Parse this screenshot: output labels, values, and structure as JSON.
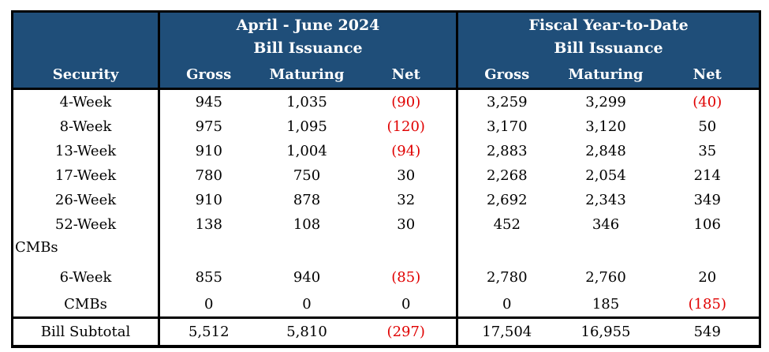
{
  "colors": {
    "header_bg": "#1F4E79",
    "header_text": "#FFFFFF",
    "negative": "#E00000",
    "body_text": "#000000",
    "border": "#000000"
  },
  "header": {
    "security_label": "Security",
    "sections": [
      {
        "line1": "April - June 2024",
        "line2": "Bill Issuance",
        "columns": [
          "Gross",
          "Maturing",
          "Net"
        ]
      },
      {
        "line1": "Fiscal Year-to-Date",
        "line2": "Bill Issuance",
        "columns": [
          "Gross",
          "Maturing",
          "Net"
        ]
      }
    ]
  },
  "rows": [
    {
      "label": "4-Week",
      "cells": [
        "945",
        "1,035",
        "(90)",
        "3,259",
        "3,299",
        "(40)"
      ]
    },
    {
      "label": "8-Week",
      "cells": [
        "975",
        "1,095",
        "(120)",
        "3,170",
        "3,120",
        "50"
      ]
    },
    {
      "label": "13-Week",
      "cells": [
        "910",
        "1,004",
        "(94)",
        "2,883",
        "2,848",
        "35"
      ]
    },
    {
      "label": "17-Week",
      "cells": [
        "780",
        "750",
        "30",
        "2,268",
        "2,054",
        "214"
      ]
    },
    {
      "label": "26-Week",
      "cells": [
        "910",
        "878",
        "32",
        "2,692",
        "2,343",
        "349"
      ]
    },
    {
      "label": "52-Week",
      "cells": [
        "138",
        "108",
        "30",
        "452",
        "346",
        "106"
      ]
    },
    {
      "label": "CMBs",
      "cells": [
        "",
        "",
        "",
        "",
        "",
        ""
      ]
    },
    {
      "label": "6-Week",
      "cells": [
        "855",
        "940",
        "(85)",
        "2,780",
        "2,760",
        "20"
      ]
    },
    {
      "label": "CMBs",
      "cells": [
        "0",
        "0",
        "0",
        "0",
        "185",
        "(185)"
      ]
    }
  ],
  "subtotal": {
    "label": "Bill Subtotal",
    "cells": [
      "5,512",
      "5,810",
      "(297)",
      "17,504",
      "16,955",
      "549"
    ]
  }
}
